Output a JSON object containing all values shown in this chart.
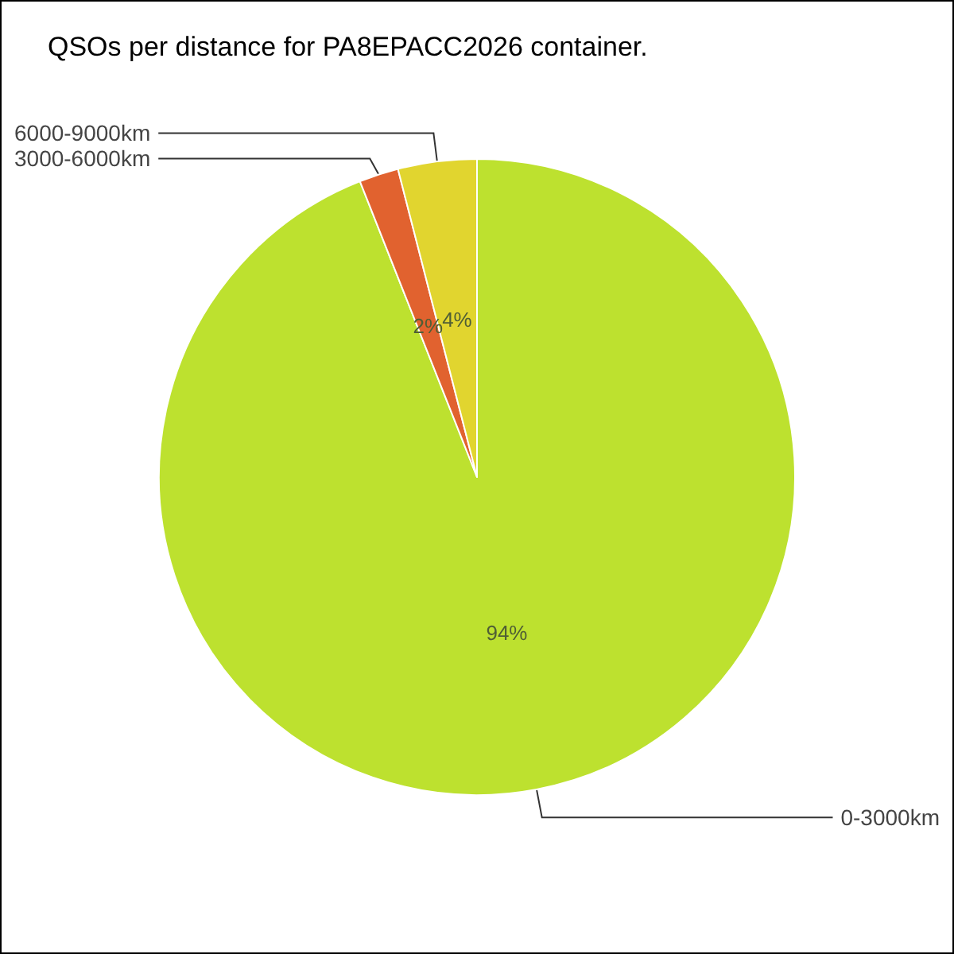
{
  "chart_data": {
    "type": "pie",
    "title": "QSOs per distance for PA8EPACC2026 container.",
    "categories": [
      "0-3000km",
      "3000-6000km",
      "6000-9000km"
    ],
    "values": [
      94,
      2,
      4
    ],
    "colors": [
      "#bde12f",
      "#e1622f",
      "#e1d52f"
    ],
    "value_labels": [
      "94%",
      "2%",
      "4%"
    ]
  }
}
